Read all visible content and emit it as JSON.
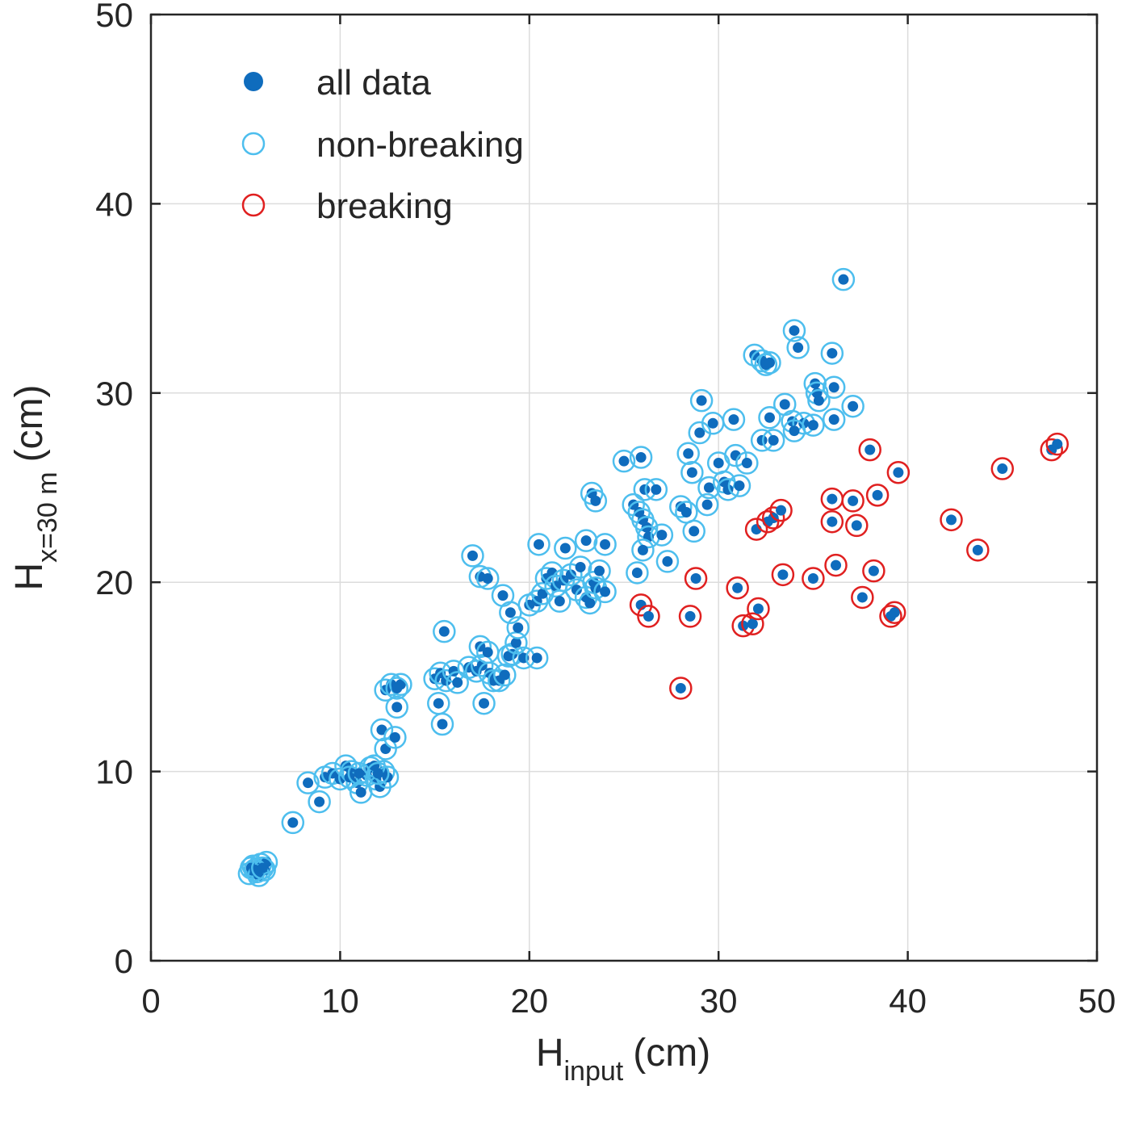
{
  "chart_data": {
    "type": "scatter",
    "xlabel": {
      "main": "H",
      "sub": "input",
      "unit": "(cm)"
    },
    "ylabel": {
      "main": "H",
      "sub": "x=30 m",
      "unit": "(cm)"
    },
    "xlim": [
      0,
      50
    ],
    "ylim": [
      0,
      50
    ],
    "xticks": [
      0,
      10,
      20,
      30,
      40,
      50
    ],
    "yticks": [
      0,
      10,
      20,
      30,
      40,
      50
    ],
    "grid": true,
    "legend": {
      "placement": "top-left",
      "entries": [
        {
          "label": "all data",
          "marker": "filled-circle",
          "color": "#0F6CBD"
        },
        {
          "label": "non-breaking",
          "marker": "open-circle",
          "color": "#4DBEEE"
        },
        {
          "label": "breaking",
          "marker": "open-circle",
          "color": "#E02020"
        }
      ]
    },
    "series": [
      {
        "name": "non-breaking",
        "color": "#4DBEEE",
        "points": [
          [
            5.2,
            4.6
          ],
          [
            5.4,
            5.0
          ],
          [
            5.6,
            4.7
          ],
          [
            5.8,
            5.1
          ],
          [
            6.0,
            4.8
          ],
          [
            5.3,
            4.9
          ],
          [
            5.7,
            4.5
          ],
          [
            6.1,
            5.2
          ],
          [
            5.5,
            4.8
          ],
          [
            5.9,
            4.9
          ],
          [
            7.5,
            7.3
          ],
          [
            8.3,
            9.4
          ],
          [
            8.9,
            8.4
          ],
          [
            9.2,
            9.7
          ],
          [
            9.6,
            9.9
          ],
          [
            10.0,
            9.6
          ],
          [
            10.3,
            10.3
          ],
          [
            10.6,
            10.0
          ],
          [
            10.9,
            9.4
          ],
          [
            11.1,
            8.9
          ],
          [
            11.4,
            9.8
          ],
          [
            11.6,
            10.2
          ],
          [
            11.9,
            9.6
          ],
          [
            12.1,
            9.2
          ],
          [
            12.3,
            10.0
          ],
          [
            12.5,
            9.7
          ],
          [
            10.5,
            9.7
          ],
          [
            11.0,
            9.9
          ],
          [
            11.8,
            10.3
          ],
          [
            12.0,
            9.9
          ],
          [
            12.2,
            12.2
          ],
          [
            12.4,
            11.2
          ],
          [
            12.9,
            11.8
          ],
          [
            13.0,
            13.4
          ],
          [
            12.4,
            14.3
          ],
          [
            12.7,
            14.6
          ],
          [
            13.2,
            14.6
          ],
          [
            13.0,
            14.4
          ],
          [
            15.2,
            13.6
          ],
          [
            15.4,
            12.5
          ],
          [
            15.5,
            17.4
          ],
          [
            15.0,
            14.9
          ],
          [
            15.3,
            15.2
          ],
          [
            15.6,
            14.8
          ],
          [
            16.0,
            15.3
          ],
          [
            16.2,
            14.7
          ],
          [
            16.8,
            15.5
          ],
          [
            17.2,
            15.3
          ],
          [
            17.5,
            15.6
          ],
          [
            17.6,
            13.6
          ],
          [
            17.4,
            16.6
          ],
          [
            17.8,
            16.3
          ],
          [
            17.9,
            15.2
          ],
          [
            18.1,
            14.8
          ],
          [
            18.4,
            14.8
          ],
          [
            18.7,
            15.1
          ],
          [
            18.9,
            16.1
          ],
          [
            19.1,
            16.2
          ],
          [
            19.3,
            16.8
          ],
          [
            19.4,
            17.6
          ],
          [
            19.7,
            16.0
          ],
          [
            20.4,
            16.0
          ],
          [
            17.0,
            21.4
          ],
          [
            17.4,
            20.3
          ],
          [
            17.8,
            20.2
          ],
          [
            18.6,
            19.3
          ],
          [
            19.0,
            18.4
          ],
          [
            20.0,
            18.8
          ],
          [
            20.4,
            19.0
          ],
          [
            20.7,
            19.4
          ],
          [
            20.5,
            22.0
          ],
          [
            20.9,
            20.2
          ],
          [
            21.2,
            20.5
          ],
          [
            21.4,
            19.8
          ],
          [
            21.6,
            19.0
          ],
          [
            21.8,
            20.1
          ],
          [
            21.9,
            21.8
          ],
          [
            22.2,
            20.4
          ],
          [
            22.5,
            19.6
          ],
          [
            22.7,
            20.8
          ],
          [
            23.0,
            19.2
          ],
          [
            23.2,
            18.9
          ],
          [
            23.4,
            20.0
          ],
          [
            23.5,
            19.7
          ],
          [
            23.7,
            20.6
          ],
          [
            24.0,
            19.5
          ],
          [
            23.0,
            22.2
          ],
          [
            24.0,
            22.0
          ],
          [
            23.3,
            24.7
          ],
          [
            23.5,
            24.3
          ],
          [
            25.0,
            26.4
          ],
          [
            25.5,
            24.1
          ],
          [
            25.9,
            26.6
          ],
          [
            25.8,
            23.7
          ],
          [
            26.0,
            23.3
          ],
          [
            26.1,
            24.9
          ],
          [
            26.2,
            22.9
          ],
          [
            26.3,
            22.4
          ],
          [
            26.0,
            21.7
          ],
          [
            26.7,
            24.9
          ],
          [
            27.0,
            22.5
          ],
          [
            27.3,
            21.1
          ],
          [
            25.7,
            20.5
          ],
          [
            28.0,
            24.0
          ],
          [
            28.3,
            23.7
          ],
          [
            28.4,
            26.8
          ],
          [
            28.6,
            25.8
          ],
          [
            28.7,
            22.7
          ],
          [
            29.0,
            27.9
          ],
          [
            29.1,
            29.6
          ],
          [
            29.4,
            24.1
          ],
          [
            29.5,
            25.0
          ],
          [
            29.7,
            28.4
          ],
          [
            30.0,
            26.3
          ],
          [
            30.3,
            25.3
          ],
          [
            30.5,
            24.9
          ],
          [
            30.8,
            28.6
          ],
          [
            30.9,
            26.7
          ],
          [
            31.1,
            25.1
          ],
          [
            31.5,
            26.3
          ],
          [
            31.9,
            32.0
          ],
          [
            32.3,
            31.7
          ],
          [
            32.5,
            31.5
          ],
          [
            32.7,
            31.6
          ],
          [
            32.3,
            27.5
          ],
          [
            32.7,
            28.7
          ],
          [
            32.9,
            27.5
          ],
          [
            33.5,
            29.4
          ],
          [
            33.9,
            28.5
          ],
          [
            34.0,
            33.3
          ],
          [
            34.2,
            32.4
          ],
          [
            34.5,
            28.4
          ],
          [
            35.0,
            28.3
          ],
          [
            34.0,
            28.0
          ],
          [
            35.1,
            30.5
          ],
          [
            35.2,
            30.0
          ],
          [
            35.3,
            29.6
          ],
          [
            36.0,
            32.1
          ],
          [
            36.1,
            30.3
          ],
          [
            36.1,
            28.6
          ],
          [
            37.1,
            29.3
          ],
          [
            36.6,
            36.0
          ]
        ]
      },
      {
        "name": "breaking",
        "color": "#E02020",
        "points": [
          [
            25.9,
            18.8
          ],
          [
            26.3,
            18.2
          ],
          [
            28.0,
            14.4
          ],
          [
            28.5,
            18.2
          ],
          [
            28.8,
            20.2
          ],
          [
            31.0,
            19.7
          ],
          [
            31.3,
            17.7
          ],
          [
            31.8,
            17.8
          ],
          [
            32.1,
            18.6
          ],
          [
            32.0,
            22.8
          ],
          [
            32.6,
            23.2
          ],
          [
            32.9,
            23.4
          ],
          [
            33.3,
            23.8
          ],
          [
            33.4,
            20.4
          ],
          [
            35.0,
            20.2
          ],
          [
            36.0,
            24.4
          ],
          [
            36.0,
            23.2
          ],
          [
            36.2,
            20.9
          ],
          [
            37.1,
            24.3
          ],
          [
            37.3,
            23.0
          ],
          [
            37.6,
            19.2
          ],
          [
            38.0,
            27.0
          ],
          [
            38.2,
            20.6
          ],
          [
            38.4,
            24.6
          ],
          [
            39.1,
            18.2
          ],
          [
            39.3,
            18.4
          ],
          [
            39.5,
            25.8
          ],
          [
            42.3,
            23.3
          ],
          [
            43.7,
            21.7
          ],
          [
            45.0,
            26.0
          ],
          [
            47.6,
            27.0
          ],
          [
            47.9,
            27.3
          ]
        ]
      }
    ]
  }
}
